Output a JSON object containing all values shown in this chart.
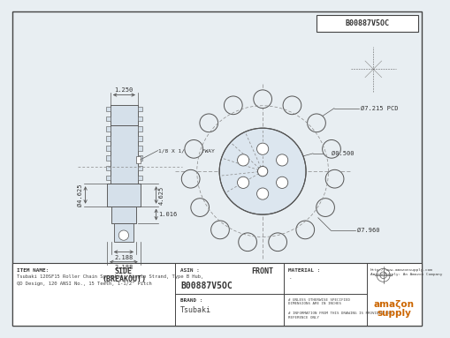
{
  "bg_color": "#f0f0f0",
  "drawing_bg": "#e8eef2",
  "line_color": "#888888",
  "dark_line": "#555555",
  "title_box": "B00887V5OC",
  "item_name_label": "ITEM NAME:",
  "item_name_line1": "Tsubaki 120SF15 Roller Chain Sprocket, Single Strand, Type B Hub,",
  "item_name_line2": "QD Design, 120 ANSI No., 15 Teeth, 1-1/2\" Pitch",
  "asin_label": "ASIN :",
  "asin": "B00887V5OC",
  "brand_label": "BRAND :",
  "brand": "Tsubaki",
  "material_label": "MATERIAL :",
  "material": "-",
  "side_label": "SIDE",
  "side_label2": "(BREAKOUT)",
  "front_label": "FRONT",
  "dim_1250": "1.250",
  "dim_keyway": "1/8 X 1/16 KEYWAY",
  "dim_4625_d": "Ø4.625",
  "dim_4625": "4.625",
  "dim_1016": "1.016",
  "dim_2188a": "2.188",
  "dim_2188b": "2.188",
  "dim_7215": "Ø7.215 PCD",
  "dim_0500": "Ø0.500",
  "dim_7960": "Ø7.960",
  "note1": "# UNLESS OTHERWISE SPECIFIED\nDIMENSIONS ARE IN INCHES",
  "note2": "# INFORMATION FROM THIS DRAWING IS PROVIDED FOR\nREFERENCE ONLY",
  "url_line1": "http://www.amazonsupply.com",
  "url_line2": "AmazonSupply: An Amazon Company",
  "sprocket_teeth": 15,
  "n_bolt_holes": 6
}
